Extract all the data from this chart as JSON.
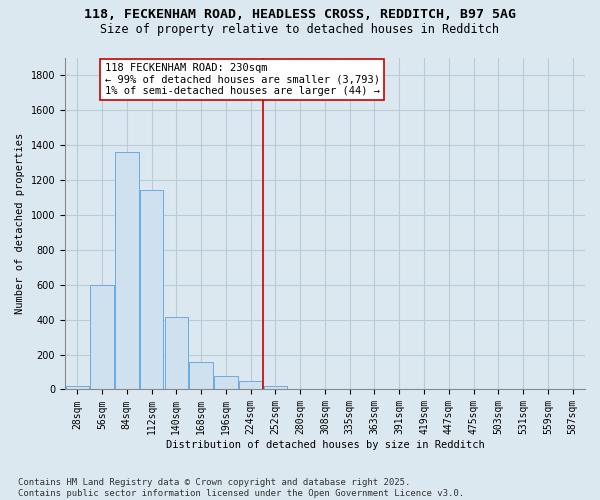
{
  "title1": "118, FECKENHAM ROAD, HEADLESS CROSS, REDDITCH, B97 5AG",
  "title2": "Size of property relative to detached houses in Redditch",
  "xlabel": "Distribution of detached houses by size in Redditch",
  "ylabel": "Number of detached properties",
  "bins": [
    "28sqm",
    "56sqm",
    "84sqm",
    "112sqm",
    "140sqm",
    "168sqm",
    "196sqm",
    "224sqm",
    "252sqm",
    "280sqm",
    "308sqm",
    "335sqm",
    "363sqm",
    "391sqm",
    "419sqm",
    "447sqm",
    "475sqm",
    "503sqm",
    "531sqm",
    "559sqm",
    "587sqm"
  ],
  "values": [
    18,
    600,
    1360,
    1140,
    415,
    160,
    75,
    50,
    18,
    0,
    0,
    0,
    0,
    0,
    0,
    0,
    0,
    0,
    0,
    0,
    0
  ],
  "bar_color": "#cfe0ef",
  "bar_edge_color": "#6aabe0",
  "vline_color": "#cc0000",
  "annotation_text": "118 FECKENHAM ROAD: 230sqm\n← 99% of detached houses are smaller (3,793)\n1% of semi-detached houses are larger (44) →",
  "annotation_box_facecolor": "#ffffff",
  "annotation_box_edgecolor": "#cc0000",
  "ylim": [
    0,
    1900
  ],
  "yticks": [
    0,
    200,
    400,
    600,
    800,
    1000,
    1200,
    1400,
    1600,
    1800
  ],
  "footnote": "Contains HM Land Registry data © Crown copyright and database right 2025.\nContains public sector information licensed under the Open Government Licence v3.0.",
  "background_color": "#dce8f0",
  "plot_background_color": "#dce8f0",
  "grid_color": "#b8cdd8",
  "title1_fontsize": 9.5,
  "title2_fontsize": 8.5,
  "axis_fontsize": 7.5,
  "tick_fontsize": 7,
  "annotation_fontsize": 7.5,
  "footnote_fontsize": 6.5,
  "vline_bin_index": 7
}
